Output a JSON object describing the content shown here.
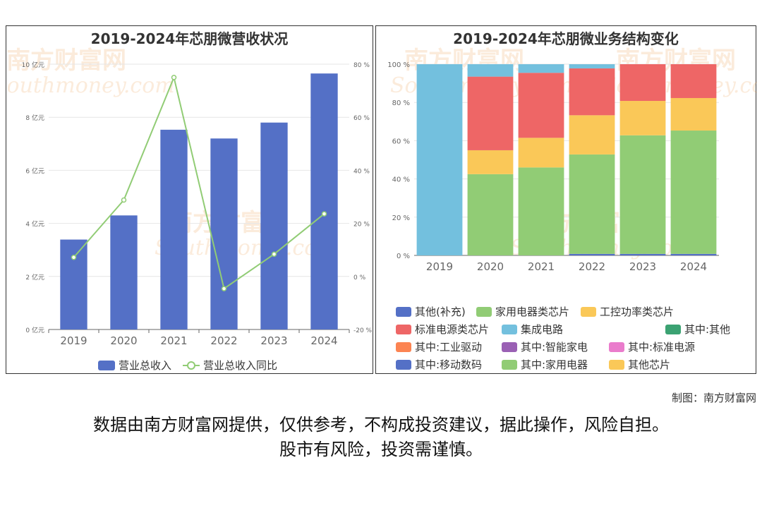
{
  "charts": [
    {
      "type": "bar",
      "title": "2019-2024年芯朋微营收状况",
      "categories": [
        "2019",
        "2020",
        "2021",
        "2022",
        "2023",
        "2024"
      ],
      "y_left": {
        "ticks": [
          "0 亿元",
          "2 亿元",
          "4 亿元",
          "6 亿元",
          "8 亿元",
          "10 亿元"
        ],
        "range": [
          0,
          10
        ]
      },
      "y_right": {
        "ticks": [
          "-20 %",
          "0 %",
          "20 %",
          "40 %",
          "60 %",
          "80 %"
        ],
        "range": [
          -20,
          80
        ]
      },
      "series": [
        {
          "name": "营业总收入",
          "kind": "bar",
          "axis": "left",
          "color": "#5470c6",
          "values": [
            3.39,
            4.3,
            7.53,
            7.2,
            7.8,
            9.65
          ]
        },
        {
          "name": "营业总收入同比",
          "kind": "line",
          "axis": "right",
          "color": "#91cc75",
          "values": [
            7.2,
            28.8,
            75.0,
            -4.6,
            8.4,
            23.6
          ]
        }
      ]
    },
    {
      "type": "bar",
      "stacked": true,
      "title": "2019-2024年芯朋微业务结构变化",
      "categories": [
        "2019",
        "2020",
        "2021",
        "2022",
        "2023",
        "2024"
      ],
      "y": {
        "ticks": [
          "0 %",
          "20 %",
          "40 %",
          "60 %",
          "80 %",
          "100 %"
        ],
        "range": [
          0,
          100
        ]
      },
      "series": [
        {
          "name": "其他(补充)",
          "color": "#5470c6",
          "values": [
            0,
            0,
            0,
            0.8,
            0.8,
            0.8
          ]
        },
        {
          "name": "家用电器类芯片",
          "color": "#91cc75",
          "values": [
            0,
            42.5,
            46,
            52,
            62,
            64.5
          ]
        },
        {
          "name": "工控功率类芯片",
          "color": "#fac858",
          "values": [
            0,
            12.5,
            15.5,
            20.5,
            18,
            17
          ]
        },
        {
          "name": "标准电源类芯片",
          "color": "#ee6666",
          "values": [
            0,
            38.5,
            34,
            24.5,
            19.2,
            17.7
          ]
        },
        {
          "name": "集成电路",
          "color": "#73c0de",
          "values": [
            100,
            6.5,
            4.5,
            2.2,
            0,
            0
          ]
        },
        {
          "name": "其中:其他",
          "color": "#3ba272",
          "values": [
            0,
            0,
            0,
            0,
            0,
            0
          ]
        },
        {
          "name": "其中:工业驱动",
          "color": "#fc8452",
          "values": [
            0,
            0,
            0,
            0,
            0,
            0
          ]
        },
        {
          "name": "其中:智能家电",
          "color": "#9a60b4",
          "values": [
            0,
            0,
            0,
            0,
            0,
            0
          ]
        },
        {
          "name": "其中:标准电源",
          "color": "#ea7ccc",
          "values": [
            0,
            0,
            0,
            0,
            0,
            0
          ]
        },
        {
          "name": "其中:移动数码",
          "color": "#5470c6",
          "values": [
            0,
            0,
            0,
            0,
            0,
            0
          ]
        },
        {
          "name": "其中:家用电器",
          "color": "#91cc75",
          "values": [
            0,
            0,
            0,
            0,
            0,
            0
          ]
        },
        {
          "name": "其他芯片",
          "color": "#fac858",
          "values": [
            0,
            0,
            0,
            0,
            0,
            0
          ]
        }
      ]
    }
  ],
  "watermark": {
    "brand": "南方财富网",
    "url": "Southmoney.com"
  },
  "credit": "制图：南方财富网",
  "disclaimer": [
    "数据由南方财富网提供，仅供参考，不构成投资建议，据此操作，风险自担。",
    "股市有风险，投资需谨慎。"
  ]
}
